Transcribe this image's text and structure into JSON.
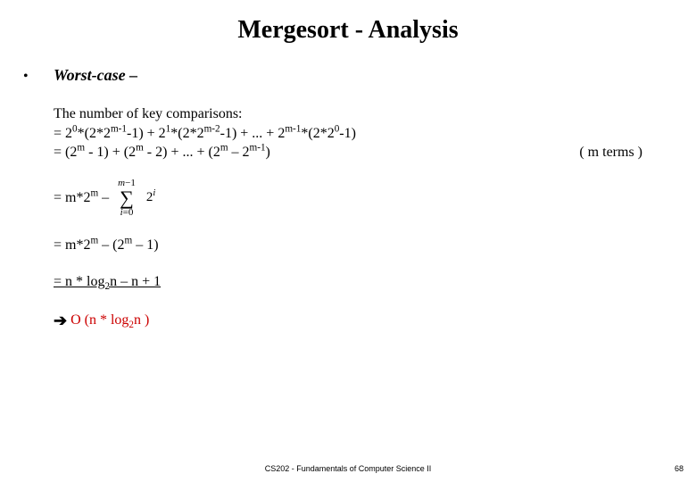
{
  "title": "Mergesort - Analysis",
  "bullet": "•",
  "subhead": "Worst-case –",
  "line_intro": "The number of key comparisons:",
  "line1_html": "= 2<sup>0</sup>*(2*2<sup>m-1</sup>-1) + 2<sup>1</sup>*(2*2<sup>m-2</sup>-1) + ... + 2<sup>m-1</sup>*(2*2<sup>0</sup>-1)",
  "line2_html": "= (2<sup>m</sup> - 1) + (2<sup>m</sup> - 2) + ... + (2<sup>m</sup> – 2<sup>m-1</sup>)",
  "parenthetical": "( m terms )",
  "line3_prefix_html": "= m*2<sup>m</sup> – ",
  "sum_upper_html": "<i>m</i>−1",
  "sigma": "∑",
  "sum_lower_html": "<i>i</i>=0",
  "sum_term_html": "2<sup><i>i</i></sup>",
  "line4_html": "= m*2<sup>m</sup> – (2<sup>m</sup> – 1)",
  "line5_html": "= n * log<sub>2</sub>n – n + 1",
  "arrow": "➔",
  "result_html": "O (n * log<sub>2</sub>n )",
  "footer": "CS202 - Fundamentals of Computer Science II",
  "pagenum": "68",
  "colors": {
    "text": "#000000",
    "result": "#cc0000",
    "bg": "#ffffff"
  }
}
